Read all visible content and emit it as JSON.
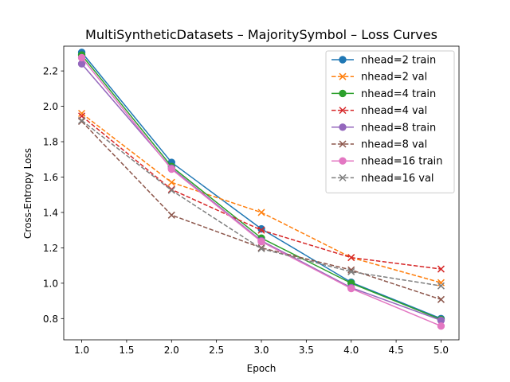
{
  "chart_data": {
    "type": "line",
    "title": "MultiSyntheticDatasets – MajoritySymbol – Loss Curves",
    "xlabel": "Epoch",
    "ylabel": "Cross-Entropy Loss",
    "xlim": [
      0.8,
      5.2
    ],
    "ylim": [
      0.68,
      2.34
    ],
    "x_ticks": [
      1.0,
      1.5,
      2.0,
      2.5,
      3.0,
      3.5,
      4.0,
      4.5,
      5.0
    ],
    "x_tick_labels": [
      "1.0",
      "1.5",
      "2.0",
      "2.5",
      "3.0",
      "3.5",
      "4.0",
      "4.5",
      "5.0"
    ],
    "y_ticks": [
      0.8,
      1.0,
      1.2,
      1.4,
      1.6,
      1.8,
      2.0,
      2.2
    ],
    "y_tick_labels": [
      "0.8",
      "1.0",
      "1.2",
      "1.4",
      "1.6",
      "1.8",
      "2.0",
      "2.2"
    ],
    "grid": false,
    "legend_position": "top-right",
    "x": [
      1,
      2,
      3,
      4,
      5
    ],
    "series": [
      {
        "name": "nhead=2 train",
        "color": "#1f77b4",
        "style": "solid",
        "marker": "circle",
        "values": [
          2.305,
          1.683,
          1.307,
          1.005,
          0.8
        ]
      },
      {
        "name": "nhead=2 val",
        "color": "#ff7f0e",
        "style": "dashed",
        "marker": "x",
        "values": [
          1.96,
          1.57,
          1.4,
          1.145,
          1.003
        ]
      },
      {
        "name": "nhead=4 train",
        "color": "#2ca02c",
        "style": "solid",
        "marker": "circle",
        "values": [
          2.29,
          1.66,
          1.255,
          1.0,
          0.795
        ]
      },
      {
        "name": "nhead=4 val",
        "color": "#d62728",
        "style": "dashed",
        "marker": "x",
        "values": [
          1.945,
          1.53,
          1.3,
          1.145,
          1.08
        ]
      },
      {
        "name": "nhead=8 train",
        "color": "#9467bd",
        "style": "solid",
        "marker": "circle",
        "values": [
          2.24,
          1.65,
          1.24,
          0.975,
          0.79
        ]
      },
      {
        "name": "nhead=8 val",
        "color": "#8c564b",
        "style": "dashed",
        "marker": "x",
        "values": [
          1.915,
          1.385,
          1.2,
          1.075,
          0.908
        ]
      },
      {
        "name": "nhead=16 train",
        "color": "#e377c2",
        "style": "solid",
        "marker": "circle",
        "values": [
          2.275,
          1.645,
          1.235,
          0.97,
          0.758
        ]
      },
      {
        "name": "nhead=16 val",
        "color": "#7f7f7f",
        "style": "dashed",
        "marker": "x",
        "values": [
          1.92,
          1.525,
          1.195,
          1.065,
          0.985
        ]
      }
    ]
  }
}
